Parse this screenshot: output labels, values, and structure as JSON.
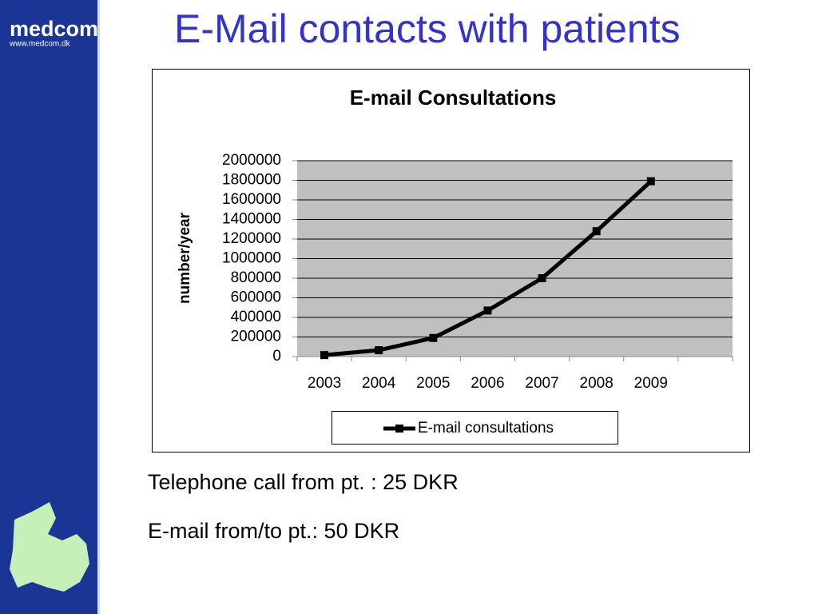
{
  "slide": {
    "logo": "medcom",
    "logo_url": "www.medcom.dk",
    "title": "E-Mail contacts with patients",
    "bullets": [
      "Telephone call from pt. : 25 DKR",
      "E-mail from/to pt.: 50 DKR"
    ]
  },
  "chart_data": {
    "type": "line",
    "title": "E-mail Consultations",
    "y_label": "number/year",
    "categories": [
      "2003",
      "2004",
      "2005",
      "2006",
      "2007",
      "2008",
      "2009",
      null
    ],
    "series": [
      {
        "name": "E-mail consultations",
        "color": "#000000",
        "values": [
          15000,
          65000,
          190000,
          470000,
          800000,
          1280000,
          1790000,
          null
        ]
      }
    ],
    "ylim": [
      0,
      2000000
    ],
    "yticks": [
      0,
      200000,
      400000,
      600000,
      800000,
      1000000,
      1200000,
      1400000,
      1600000,
      1800000,
      2000000
    ],
    "grid": true,
    "plot_background": "#c0c0c0",
    "legend": "bottom"
  }
}
